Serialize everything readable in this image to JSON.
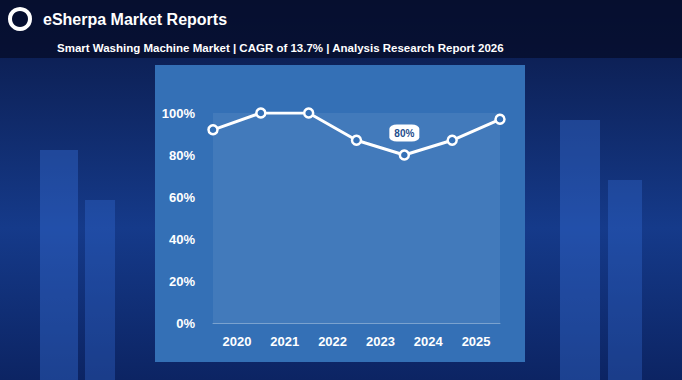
{
  "chart_data": {
    "type": "line",
    "brand": "eSherpa Market Reports",
    "title": "Smart Washing Machine Market | CAGR of 13.7% | Analysis Research Report 2026",
    "x": [
      2019.5,
      2020.5,
      2021.5,
      2022.5,
      2023.5,
      2024.5,
      2025.5
    ],
    "values": [
      92,
      100,
      100,
      87,
      80,
      87,
      97
    ],
    "color": "#ffffff",
    "marker": "circle",
    "line_style": "solid",
    "xlim": [
      2019.5,
      2025.5
    ],
    "xticks": [
      2020,
      2021,
      2022,
      2023,
      2024,
      2025
    ],
    "ylim": [
      0,
      100
    ],
    "yticks": [
      {
        "value": 0,
        "label": "0%"
      },
      {
        "value": 20,
        "label": "20%"
      },
      {
        "value": 40,
        "label": "40%"
      },
      {
        "value": 60,
        "label": "60%"
      },
      {
        "value": 80,
        "label": "80%"
      },
      {
        "value": 100,
        "label": "100%"
      }
    ],
    "annotations": [
      {
        "text": "80%",
        "x": 2023.5,
        "y": 80
      }
    ],
    "grid": false,
    "data_labels": false
  }
}
